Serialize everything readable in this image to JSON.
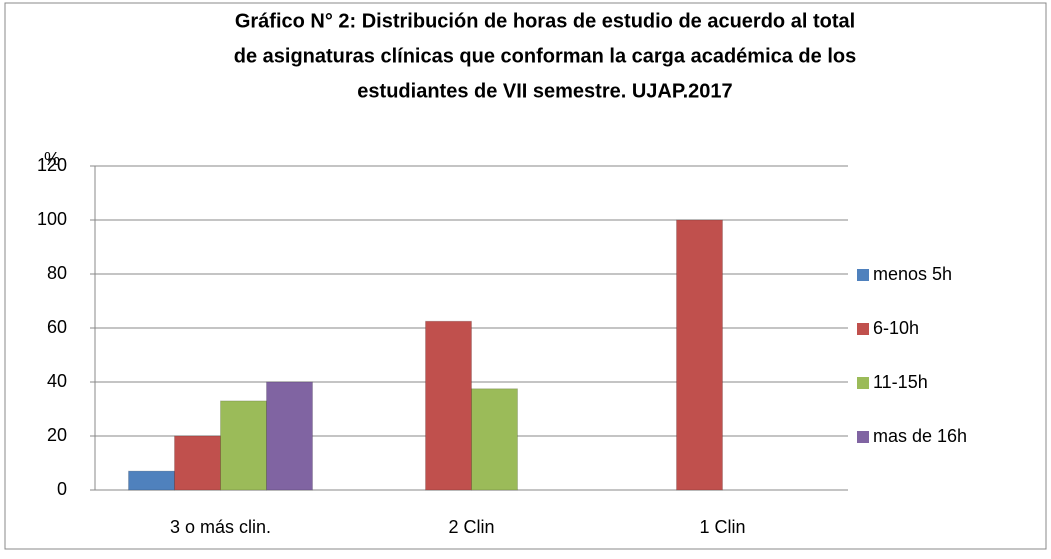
{
  "chart_data": {
    "type": "bar",
    "title": [
      "Gráfico N° 2: Distribución de horas de estudio de acuerdo al total",
      "de asignaturas clínicas que conforman la carga académica de los",
      "estudiantes de VII semestre. UJAP.2017"
    ],
    "y_label": "%",
    "categories": [
      "3 o más clin.",
      "2 Clin",
      "1 Clin"
    ],
    "series": [
      {
        "name": "menos 5h",
        "color": "#4f81bd",
        "values": [
          7,
          null,
          null
        ]
      },
      {
        "name": "6-10h",
        "color": "#c0504d",
        "values": [
          20,
          62.5,
          100
        ]
      },
      {
        "name": "11-15h",
        "color": "#9bbb59",
        "values": [
          33,
          37.5,
          null
        ]
      },
      {
        "name": "mas de 16h",
        "color": "#8064a2",
        "values": [
          40,
          null,
          null
        ]
      }
    ],
    "ylim": [
      0,
      120
    ],
    "yticks": [
      0,
      20,
      40,
      60,
      80,
      100,
      120
    ],
    "grid": true,
    "legend": "right"
  }
}
